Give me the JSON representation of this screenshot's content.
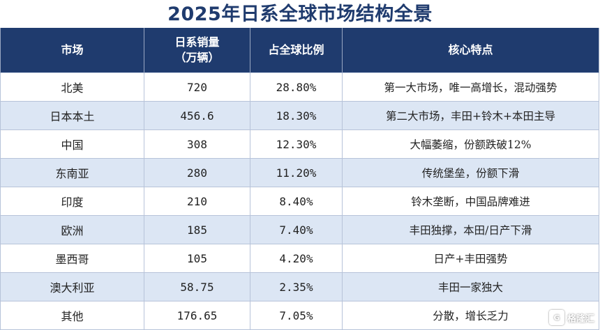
{
  "title": "2025年日系全球市场结构全景",
  "headers": {
    "market": "市场",
    "sales_line1": "日系销量",
    "sales_line2": "（万辆）",
    "share": "占全球比例",
    "features": "核心特点"
  },
  "rows": [
    {
      "market": "北美",
      "sales": "720",
      "share": "28.80%",
      "features": "第一大市场，唯一高增长，混动强势"
    },
    {
      "market": "日本本土",
      "sales": "456.6",
      "share": "18.30%",
      "features": "第二大市场，丰田+铃木+本田主导"
    },
    {
      "market": "中国",
      "sales": "308",
      "share": "12.30%",
      "features": "大幅萎缩，份额跌破12%"
    },
    {
      "market": "东南亚",
      "sales": "280",
      "share": "11.20%",
      "features": "传统堡垒，份额下滑"
    },
    {
      "market": "印度",
      "sales": "210",
      "share": "8.40%",
      "features": "铃木垄断，中国品牌难进"
    },
    {
      "market": "欧洲",
      "sales": "185",
      "share": "7.40%",
      "features": "丰田独撑，本田/日产下滑"
    },
    {
      "market": "墨西哥",
      "sales": "105",
      "share": "4.20%",
      "features": "日产+丰田强势"
    },
    {
      "market": "澳大利亚",
      "sales": "58.75",
      "share": "2.35%",
      "features": "丰田一家独大"
    },
    {
      "market": "其他",
      "sales": "176.65",
      "share": "7.05%",
      "features": "分散，增长乏力"
    }
  ],
  "watermark": "格隆汇",
  "colors": {
    "header_bg": "#1f3b6e",
    "title": "#1f3b6e",
    "stripe": "#dce6f4"
  }
}
